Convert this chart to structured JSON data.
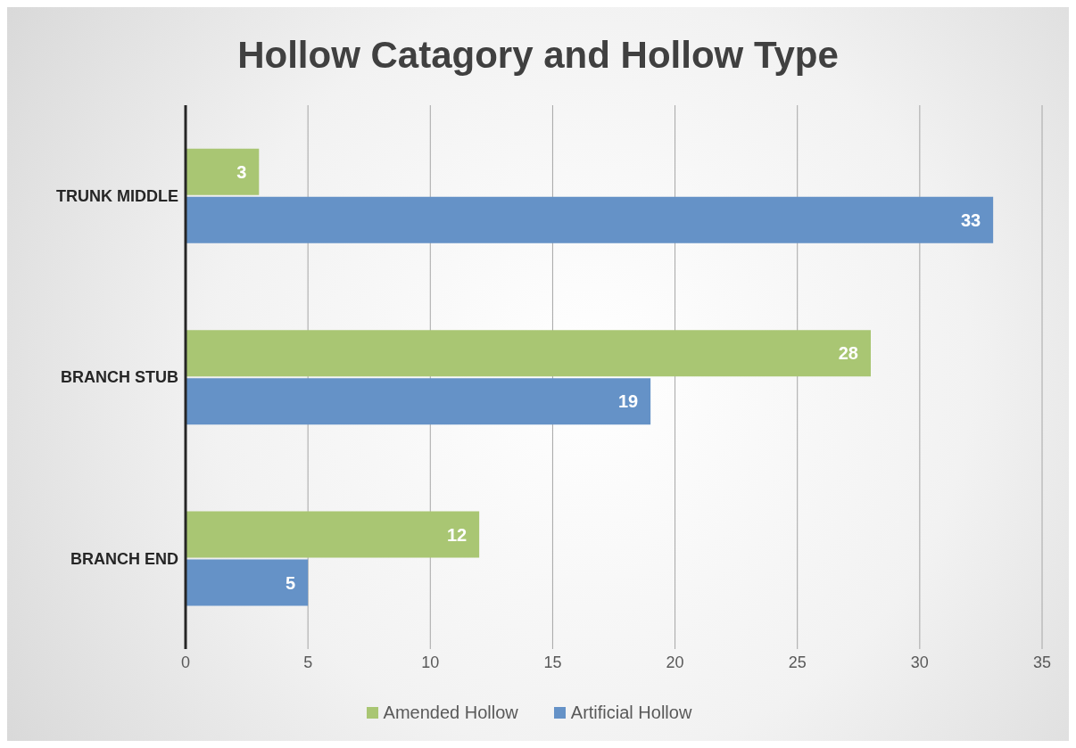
{
  "chart_data": {
    "type": "bar",
    "orientation": "horizontal",
    "title": "Hollow Catagory and Hollow Type",
    "categories": [
      "TRUNK MIDDLE",
      "BRANCH STUB",
      "BRANCH END"
    ],
    "series": [
      {
        "name": "Amended Hollow",
        "color": "#a9c673",
        "values": [
          3,
          28,
          12
        ]
      },
      {
        "name": "Artificial Hollow",
        "color": "#6592c7",
        "values": [
          33,
          19,
          5
        ]
      }
    ],
    "xlim": [
      0,
      35
    ],
    "xticks": [
      0,
      5,
      10,
      15,
      20,
      25,
      30,
      35
    ],
    "grid": "x",
    "legend": "bottom",
    "data_labels": true
  }
}
